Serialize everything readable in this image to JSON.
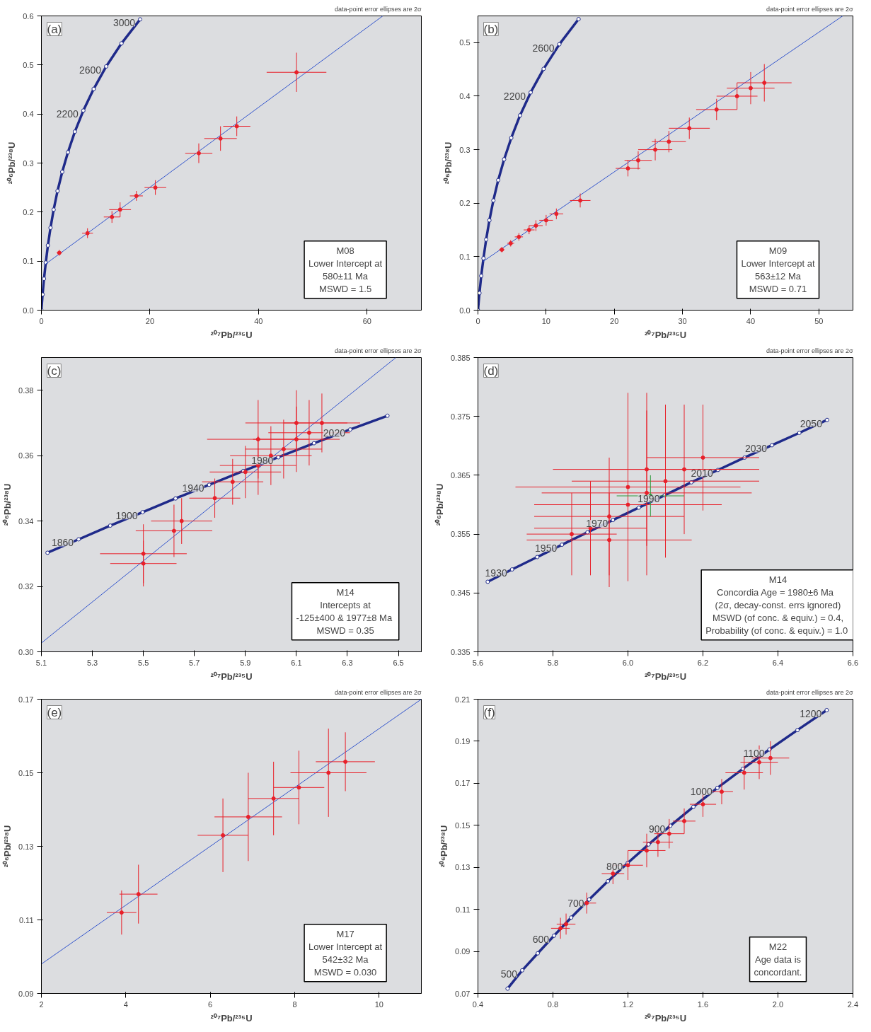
{
  "chart_data": [
    {
      "type": "line",
      "xlabel": "²⁰⁷Pb/²³⁵U",
      "ylabel": "²⁰⁶Pb/²³⁸U",
      "xlim": [
        0,
        70
      ],
      "ylim": [
        0,
        0.6
      ],
      "xticks": [
        0,
        20,
        40,
        60
      ],
      "yticks": [
        {
          "value": 0,
          "label": "0.0"
        },
        0.1,
        0.2,
        0.3,
        0.4,
        0.5,
        0.6
      ],
      "grid": false,
      "annotations": [
        "(a)",
        "data-point error ellipses are 2σ",
        "M08\nLower Intercept at\n580±11 Ma\nMSWD = 1.5",
        {
          "text": "2200",
          "x": 7.73,
          "y": 0.407
        },
        {
          "text": "2600",
          "x": 11.94,
          "y": 0.497
        },
        {
          "text": "3000",
          "x": 18.19,
          "y": 0.593
        }
      ],
      "series": [
        {
          "marker": "circle",
          "color": "#1f2a8a",
          "x": [
            0,
            0.22,
            0.48,
            0.81,
            1.2,
            1.68,
            2.26,
            2.97,
            3.84,
            4.89,
            6.17,
            7.73,
            9.63,
            11.94,
            14.76,
            18.19
          ],
          "values": [
            0,
            0.032,
            0.064,
            0.097,
            0.132,
            0.168,
            0.205,
            0.243,
            0.282,
            0.322,
            0.364,
            0.407,
            0.451,
            0.497,
            0.544,
            0.593
          ]
        },
        {
          "marker": "none",
          "color": "#3355cc",
          "x": [
            0.77,
            62.9
          ],
          "values": [
            0.094,
            0.6
          ]
        },
        {
          "type": "scatter",
          "color": "#e8202a",
          "x": [
            3.3,
            8.5,
            13,
            14.5,
            17.5,
            21,
            29,
            33,
            36,
            47
          ],
          "values": [
            0.117,
            0.157,
            0.19,
            0.205,
            0.233,
            0.25,
            0.32,
            0.35,
            0.375,
            0.485
          ],
          "xerrors": [
            0.5,
            1,
            1.5,
            2,
            1.2,
            2,
            2.5,
            3,
            2.5,
            5.5
          ],
          "errors": [
            0.006,
            0.01,
            0.012,
            0.015,
            0.01,
            0.015,
            0.02,
            0.025,
            0.02,
            0.04
          ]
        }
      ]
    },
    {
      "type": "line",
      "xlabel": "²⁰⁷Pb/²³⁵U",
      "ylabel": "²⁰⁶Pb/²³⁸U",
      "xlim": [
        0,
        55
      ],
      "ylim": [
        0,
        0.55
      ],
      "xticks": [
        0,
        10,
        20,
        30,
        40,
        50
      ],
      "yticks": [
        {
          "value": 0,
          "label": "0.0"
        },
        0.1,
        0.2,
        0.3,
        0.4,
        0.5
      ],
      "grid": false,
      "annotations": [
        "(b)",
        "data-point error ellipses are 2σ",
        "M09\nLower Intercept at\n563±12 Ma\nMSWD = 0.71",
        {
          "text": "2200",
          "x": 7.73,
          "y": 0.407
        },
        {
          "text": "2600",
          "x": 11.94,
          "y": 0.497
        }
      ],
      "series": [
        {
          "marker": "circle",
          "color": "#1f2a8a",
          "x": [
            0,
            0.22,
            0.48,
            0.81,
            1.2,
            1.68,
            2.26,
            2.97,
            3.84,
            4.89,
            6.17,
            7.73,
            9.63,
            11.94,
            14.76
          ],
          "values": [
            0,
            0.032,
            0.064,
            0.097,
            0.132,
            0.168,
            0.205,
            0.243,
            0.282,
            0.322,
            0.364,
            0.407,
            0.451,
            0.497,
            0.544
          ]
        },
        {
          "marker": "none",
          "color": "#3355cc",
          "x": [
            0.74,
            53.5
          ],
          "values": [
            0.091,
            0.55
          ]
        },
        {
          "type": "scatter",
          "color": "#e8202a",
          "x": [
            3.5,
            4.8,
            6,
            7.5,
            8.5,
            10,
            11.5,
            15,
            22,
            23.5,
            26,
            28,
            31,
            35,
            38,
            40,
            42
          ],
          "values": [
            0.113,
            0.125,
            0.137,
            0.15,
            0.158,
            0.168,
            0.18,
            0.205,
            0.265,
            0.28,
            0.3,
            0.315,
            0.34,
            0.375,
            0.4,
            0.415,
            0.425
          ],
          "xerrors": [
            0.4,
            0.5,
            0.6,
            0.8,
            1,
            1,
            1,
            1.5,
            1.8,
            2,
            2.5,
            2.5,
            3,
            3,
            3,
            3.5,
            4
          ],
          "errors": [
            0.005,
            0.006,
            0.007,
            0.008,
            0.01,
            0.01,
            0.01,
            0.013,
            0.015,
            0.017,
            0.02,
            0.02,
            0.02,
            0.02,
            0.025,
            0.03,
            0.035
          ]
        }
      ]
    },
    {
      "type": "line",
      "xlabel": "²⁰⁷Pb/²³⁵U",
      "ylabel": "²⁰⁶Pb/²³⁸U",
      "xlim": [
        5.1,
        6.59
      ],
      "ylim": [
        0.3,
        0.39
      ],
      "xticks": [
        5.1,
        5.3,
        5.5,
        5.7,
        5.9,
        6.1,
        6.3,
        6.5
      ],
      "yticks": [
        {
          "value": 0.3,
          "label": "0.30"
        },
        {
          "value": 0.32,
          "label": "0.32"
        },
        {
          "value": 0.34,
          "label": "0.34"
        },
        {
          "value": 0.36,
          "label": "0.36"
        },
        {
          "value": 0.38,
          "label": "0.38"
        }
      ],
      "grid": false,
      "annotations": [
        "(c)",
        "data-point error ellipses are 2σ",
        "M14\nIntercepts at\n-125±400 & 1977±8  Ma\nMSWD = 0.35",
        {
          "text": "1860",
          "x": 5.246,
          "y": 0.3344
        },
        {
          "text": "1900",
          "x": 5.497,
          "y": 0.3427
        },
        {
          "text": "1940",
          "x": 5.758,
          "y": 0.3511
        },
        {
          "text": "1980",
          "x": 6.029,
          "y": 0.3595
        },
        {
          "text": "2020",
          "x": 6.311,
          "y": 0.368
        }
      ],
      "series": [
        {
          "marker": "circle",
          "color": "#1f2a8a",
          "x": [
            5.124,
            5.246,
            5.37,
            5.497,
            5.626,
            5.758,
            5.892,
            6.029,
            6.169,
            6.311,
            6.457
          ],
          "values": [
            0.3303,
            0.3344,
            0.3386,
            0.3427,
            0.3469,
            0.3511,
            0.3553,
            0.3595,
            0.3638,
            0.368,
            0.3722
          ]
        },
        {
          "marker": "none",
          "color": "#3355cc",
          "x": [
            5.1,
            6.49
          ],
          "values": [
            0.3027,
            0.39
          ]
        },
        {
          "type": "scatter",
          "color": "#e8202a",
          "x": [
            5.5,
            5.5,
            5.62,
            5.65,
            5.78,
            5.85,
            5.9,
            5.95,
            6.0,
            6.05,
            6.1,
            6.15,
            6.2,
            5.95,
            6.1
          ],
          "values": [
            0.327,
            0.33,
            0.337,
            0.34,
            0.347,
            0.352,
            0.355,
            0.357,
            0.36,
            0.362,
            0.365,
            0.367,
            0.37,
            0.365,
            0.37
          ],
          "xerrors": [
            0.13,
            0.17,
            0.15,
            0.12,
            0.1,
            0.12,
            0.14,
            0.15,
            0.16,
            0.15,
            0.17,
            0.16,
            0.15,
            0.2,
            0.2
          ],
          "errors": [
            0.007,
            0.009,
            0.008,
            0.007,
            0.006,
            0.007,
            0.008,
            0.009,
            0.009,
            0.009,
            0.01,
            0.01,
            0.009,
            0.012,
            0.01
          ]
        }
      ]
    },
    {
      "type": "line",
      "xlabel": "²⁰⁷Pb/²³⁵U",
      "ylabel": "²⁰⁶Pb/²³⁸U",
      "xlim": [
        5.6,
        6.6
      ],
      "ylim": [
        0.335,
        0.385
      ],
      "xticks": [
        5.6,
        5.8,
        {
          "value": 6,
          "label": "6.0"
        },
        6.2,
        6.4,
        6.6
      ],
      "yticks": [
        0.335,
        0.345,
        0.355,
        0.365,
        0.375,
        0.385
      ],
      "grid": false,
      "annotations": [
        "(d)",
        "data-point error ellipses are 2σ",
        "M14\nConcordia  Age = 1980±6  Ma\n(2σ, decay-const. errs ignored)\nMSWD (of conc. & equiv.) = 0.4,\nProbability  (of conc. & equiv.) = 1.0",
        {
          "text": "1930",
          "x": 5.691,
          "y": 0.349
        },
        {
          "text": "1950",
          "x": 5.824,
          "y": 0.3532
        },
        {
          "text": "1970",
          "x": 5.96,
          "y": 0.3574
        },
        {
          "text": "1990",
          "x": 6.098,
          "y": 0.3616
        },
        {
          "text": "2010",
          "x": 6.24,
          "y": 0.3659
        },
        {
          "text": "2030",
          "x": 6.384,
          "y": 0.3701
        },
        {
          "text": "2050",
          "x": 6.531,
          "y": 0.3744
        }
      ],
      "series": [
        {
          "marker": "circle",
          "color": "#1f2a8a",
          "x": [
            5.626,
            5.691,
            5.758,
            5.824,
            5.892,
            5.96,
            6.029,
            6.098,
            6.169,
            6.24,
            6.311,
            6.384,
            6.457,
            6.531
          ],
          "values": [
            0.3469,
            0.349,
            0.3511,
            0.3532,
            0.3553,
            0.3574,
            0.3595,
            0.3616,
            0.3638,
            0.3659,
            0.368,
            0.3701,
            0.3722,
            0.3744
          ]
        },
        {
          "type": "scatter",
          "color": "#e8202a",
          "x": [
            5.85,
            5.9,
            5.95,
            6.0,
            6.05,
            6.1,
            6.15,
            6.2,
            6.0,
            6.05,
            5.95
          ],
          "values": [
            0.355,
            0.356,
            0.358,
            0.36,
            0.362,
            0.364,
            0.366,
            0.368,
            0.363,
            0.366,
            0.354
          ],
          "xerrors": [
            0.12,
            0.15,
            0.2,
            0.25,
            0.28,
            0.25,
            0.2,
            0.15,
            0.3,
            0.25,
            0.22
          ],
          "errors": [
            0.007,
            0.008,
            0.01,
            0.012,
            0.014,
            0.013,
            0.011,
            0.009,
            0.016,
            0.013,
            0.008
          ]
        },
        {
          "type": "scatter",
          "color": "#2e9a3a",
          "x": [
            6.06
          ],
          "values": [
            0.3615
          ],
          "xerrors": [
            0.09
          ],
          "errors": [
            0.0035
          ]
        }
      ]
    },
    {
      "type": "line",
      "xlabel": "²⁰⁷Pb/²³⁵U",
      "ylabel": "²⁰⁶Pb/²³⁸U",
      "xlim": [
        2,
        11
      ],
      "ylim": [
        0.09,
        0.17
      ],
      "xticks": [
        2,
        4,
        6,
        8,
        10
      ],
      "yticks": [
        0.09,
        0.11,
        0.13,
        0.15,
        0.17
      ],
      "grid": false,
      "annotations": [
        "(e)",
        "data-point error ellipses are 2σ",
        "M17\nLower Intercept at\n542±32 Ma\nMSWD = 0.030"
      ],
      "series": [
        {
          "marker": "none",
          "color": "#3355cc",
          "x": [
            2,
            11
          ],
          "values": [
            0.098,
            0.17
          ]
        },
        {
          "type": "scatter",
          "color": "#e8202a",
          "x": [
            3.9,
            4.3,
            6.3,
            6.9,
            7.5,
            8.1,
            8.8,
            9.2
          ],
          "values": [
            0.112,
            0.117,
            0.133,
            0.138,
            0.143,
            0.146,
            0.15,
            0.153
          ],
          "xerrors": [
            0.35,
            0.45,
            0.6,
            0.8,
            0.6,
            0.6,
            0.9,
            0.7
          ],
          "errors": [
            0.006,
            0.008,
            0.01,
            0.012,
            0.01,
            0.01,
            0.012,
            0.008
          ]
        }
      ]
    },
    {
      "type": "line",
      "xlabel": "²⁰⁷Pb/²³⁵U",
      "ylabel": "²⁰⁶Pb/²³⁸U",
      "xlim": [
        0.4,
        2.4
      ],
      "ylim": [
        0.07,
        0.21
      ],
      "xticks": [
        0.4,
        0.8,
        1.2,
        1.6,
        {
          "value": 2,
          "label": "2.0"
        },
        2.4
      ],
      "yticks": [
        0.07,
        0.09,
        0.11,
        0.13,
        0.15,
        0.17,
        0.19,
        0.21
      ],
      "grid": false,
      "annotations": [
        "(f)",
        "data-point error ellipses are 2σ",
        "M22\nAge data is\nconcordant.",
        {
          "text": "500",
          "x": 0.636,
          "y": 0.081
        },
        {
          "text": "600",
          "x": 0.806,
          "y": 0.0975
        },
        {
          "text": "700",
          "x": 0.993,
          "y": 0.1147
        },
        {
          "text": "800",
          "x": 1.199,
          "y": 0.1321
        },
        {
          "text": "900",
          "x": 1.426,
          "y": 0.1498
        },
        {
          "text": "1000",
          "x": 1.677,
          "y": 0.1678
        },
        {
          "text": "1100",
          "x": 1.955,
          "y": 0.1861
        },
        {
          "text": "1200",
          "x": 2.26,
          "y": 0.2048
        }
      ],
      "series": [
        {
          "marker": "circle",
          "color": "#1f2a8a",
          "x": [
            0.558,
            0.636,
            0.719,
            0.806,
            0.897,
            0.993,
            1.093,
            1.199,
            1.31,
            1.426,
            1.549,
            1.677,
            1.813,
            1.955,
            2.104,
            2.26
          ],
          "values": [
            0.0723,
            0.081,
            0.0891,
            0.0975,
            0.1061,
            0.1147,
            0.1234,
            0.1321,
            0.1409,
            0.1498,
            0.1588,
            0.1678,
            0.1769,
            0.1861,
            0.1953,
            0.2048
          ]
        },
        {
          "type": "scatter",
          "color": "#e8202a",
          "x": [
            0.84,
            0.87,
            0.98,
            1.12,
            1.2,
            1.3,
            1.36,
            1.42,
            1.5,
            1.6,
            1.7,
            1.82,
            1.9,
            1.96
          ],
          "values": [
            0.101,
            0.103,
            0.113,
            0.127,
            0.131,
            0.138,
            0.142,
            0.146,
            0.152,
            0.16,
            0.166,
            0.175,
            0.18,
            0.182
          ],
          "xerrors": [
            0.05,
            0.05,
            0.05,
            0.06,
            0.08,
            0.1,
            0.08,
            0.08,
            0.06,
            0.07,
            0.06,
            0.1,
            0.1,
            0.1
          ],
          "errors": [
            0.005,
            0.005,
            0.005,
            0.005,
            0.007,
            0.008,
            0.007,
            0.007,
            0.006,
            0.006,
            0.006,
            0.008,
            0.008,
            0.008
          ]
        }
      ]
    }
  ]
}
